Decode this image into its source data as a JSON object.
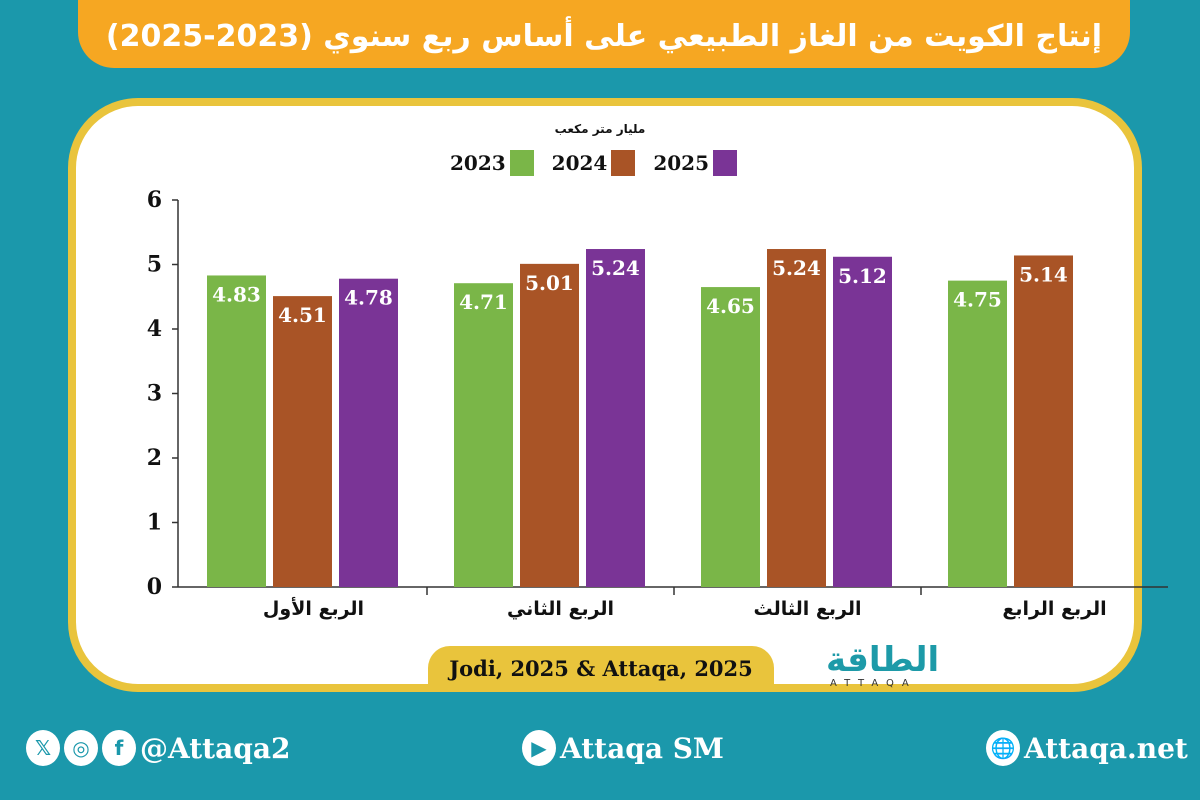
{
  "title": "إنتاج الكويت من الغاز الطبيعي على أساس ربع سنوي (2023-2025)",
  "chart_data": {
    "type": "bar",
    "unit_label": "مليار متر مكعب",
    "categories": [
      "الربع الأول",
      "الربع الثاني",
      "الربع الثالث",
      "الربع الرابع"
    ],
    "series": [
      {
        "name": "2023",
        "color": "#7ab648",
        "values": [
          4.83,
          4.71,
          4.65,
          4.75
        ]
      },
      {
        "name": "2024",
        "color": "#a95426",
        "values": [
          4.51,
          5.01,
          5.24,
          5.14
        ]
      },
      {
        "name": "2025",
        "color": "#7a3496",
        "values": [
          4.78,
          5.24,
          5.12,
          null
        ]
      }
    ],
    "ylim": [
      0,
      6
    ],
    "yticks": [
      "0",
      "1",
      "2",
      "3",
      "4",
      "5",
      "6"
    ],
    "legend_position": "top-center",
    "grid": false
  },
  "source": "Jodi, 2025 & Attaqa, 2025",
  "logo": {
    "text": "الطاقة",
    "sub": "ATTAQA"
  },
  "footer": {
    "social_handle": "@Attaqa2",
    "youtube": "Attaqa SM",
    "website": "Attaqa.net"
  }
}
